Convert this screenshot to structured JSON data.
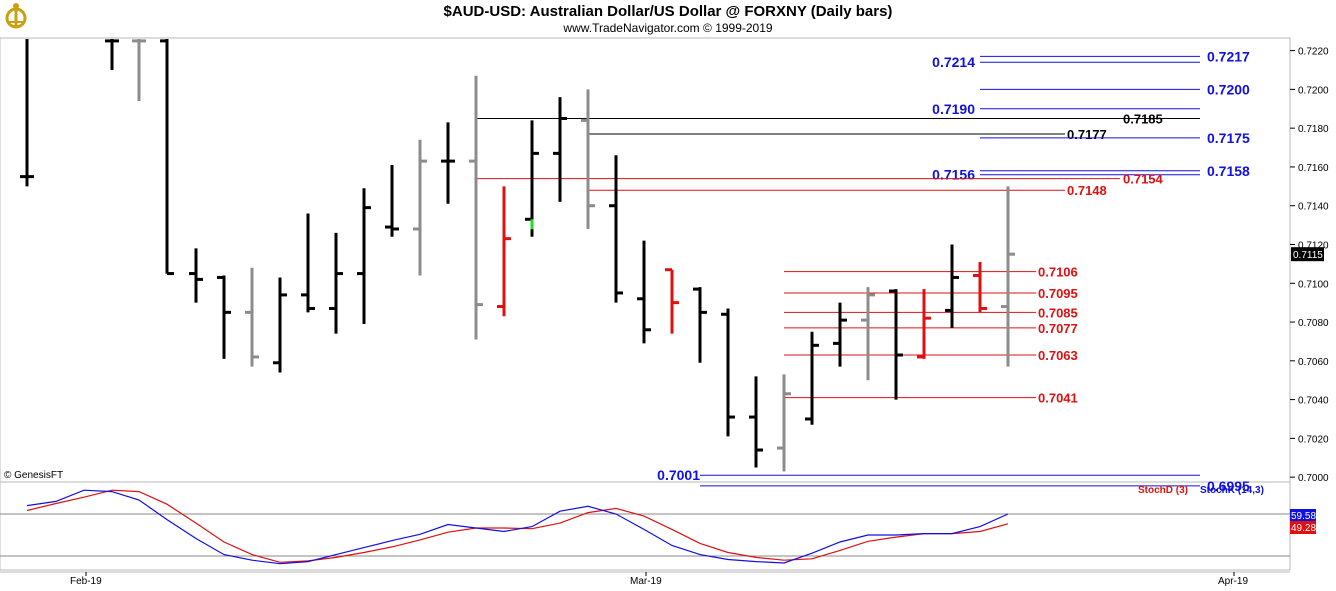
{
  "header": {
    "title": "$AUD-USD:  Australian Dollar/US Dollar @ FORXNY  (Daily bars)",
    "subtitle": "www.TradeNavigator.com © 1999-2019"
  },
  "copyright": "© GenesisFT",
  "colors": {
    "blue": "#1010e0",
    "red": "#e01010",
    "black": "#000000",
    "grey": "#8c8c8c",
    "green": "#22dd22"
  },
  "chart_data": {
    "type": "ohlc",
    "ylim": [
      6.9975,
      7.2265
    ],
    "price_scale": 0.1,
    "yticks": [
      "0.7000",
      "0.7020",
      "0.7040",
      "0.7060",
      "0.7080",
      "0.7100",
      "0.7120",
      "0.7140",
      "0.7160",
      "0.7180",
      "0.7200",
      "0.7220"
    ],
    "last_price": "0.7115",
    "date_labels": [
      "Feb-19",
      "Mar-19",
      "Apr-19"
    ],
    "bars": [
      {
        "x": 27,
        "o": 7.155,
        "h": 7.235,
        "l": 7.15,
        "c": 7.155,
        "col": "black"
      },
      {
        "x": 112,
        "o": 7.225,
        "h": 7.235,
        "l": 7.21,
        "c": 7.225,
        "col": "black"
      },
      {
        "x": 139,
        "o": 7.225,
        "h": 7.235,
        "l": 7.194,
        "c": 7.225,
        "col": "grey"
      },
      {
        "x": 167,
        "o": 7.225,
        "h": 7.235,
        "l": 7.105,
        "c": 7.105,
        "col": "black"
      },
      {
        "x": 196,
        "o": 7.105,
        "h": 7.118,
        "l": 7.09,
        "c": 7.102,
        "col": "black"
      },
      {
        "x": 224,
        "o": 7.103,
        "h": 7.104,
        "l": 7.061,
        "c": 7.085,
        "col": "black"
      },
      {
        "x": 252,
        "o": 7.085,
        "h": 7.108,
        "l": 7.057,
        "c": 7.062,
        "col": "grey"
      },
      {
        "x": 280,
        "o": 7.059,
        "h": 7.103,
        "l": 7.054,
        "c": 7.094,
        "col": "black"
      },
      {
        "x": 308,
        "o": 7.094,
        "h": 7.136,
        "l": 7.085,
        "c": 7.087,
        "col": "black"
      },
      {
        "x": 336,
        "o": 7.087,
        "h": 7.126,
        "l": 7.074,
        "c": 7.105,
        "col": "black"
      },
      {
        "x": 364,
        "o": 7.105,
        "h": 7.149,
        "l": 7.079,
        "c": 7.139,
        "col": "black"
      },
      {
        "x": 392,
        "o": 7.129,
        "h": 7.161,
        "l": 7.124,
        "c": 7.128,
        "col": "black"
      },
      {
        "x": 420,
        "o": 7.128,
        "h": 7.174,
        "l": 7.104,
        "c": 7.163,
        "col": "grey"
      },
      {
        "x": 448,
        "o": 7.163,
        "h": 7.183,
        "l": 7.141,
        "c": 7.163,
        "col": "black"
      },
      {
        "x": 476,
        "o": 7.163,
        "h": 7.207,
        "l": 7.071,
        "c": 7.089,
        "col": "grey"
      },
      {
        "x": 504,
        "o": 7.088,
        "h": 7.15,
        "l": 7.083,
        "c": 7.123,
        "col": "red"
      },
      {
        "x": 532,
        "o": 7.133,
        "h": 7.184,
        "l": 7.124,
        "c": 7.167,
        "col": "black",
        "mark": "green"
      },
      {
        "x": 560,
        "o": 7.167,
        "h": 7.196,
        "l": 7.142,
        "c": 7.185,
        "col": "black"
      },
      {
        "x": 588,
        "o": 7.184,
        "h": 7.2,
        "l": 7.128,
        "c": 7.14,
        "col": "grey"
      },
      {
        "x": 616,
        "o": 7.14,
        "h": 7.166,
        "l": 7.09,
        "c": 7.095,
        "col": "black"
      },
      {
        "x": 644,
        "o": 7.092,
        "h": 7.122,
        "l": 7.069,
        "c": 7.076,
        "col": "black"
      },
      {
        "x": 672,
        "o": 7.107,
        "h": 7.107,
        "l": 7.074,
        "c": 7.09,
        "col": "red"
      },
      {
        "x": 700,
        "o": 7.097,
        "h": 7.098,
        "l": 7.059,
        "c": 7.085,
        "col": "black"
      },
      {
        "x": 728,
        "o": 7.084,
        "h": 7.087,
        "l": 7.021,
        "c": 7.031,
        "col": "black"
      },
      {
        "x": 756,
        "o": 7.031,
        "h": 7.052,
        "l": 7.005,
        "c": 7.014,
        "col": "black"
      },
      {
        "x": 784,
        "o": 7.015,
        "h": 7.053,
        "l": 7.003,
        "c": 7.043,
        "col": "grey"
      },
      {
        "x": 812,
        "o": 7.03,
        "h": 7.075,
        "l": 7.027,
        "c": 7.068,
        "col": "black"
      },
      {
        "x": 840,
        "o": 7.069,
        "h": 7.09,
        "l": 7.057,
        "c": 7.081,
        "col": "black"
      },
      {
        "x": 868,
        "o": 7.081,
        "h": 7.098,
        "l": 7.05,
        "c": 7.094,
        "col": "grey"
      },
      {
        "x": 896,
        "o": 7.096,
        "h": 7.097,
        "l": 7.04,
        "c": 7.063,
        "col": "black"
      },
      {
        "x": 924,
        "o": 7.062,
        "h": 7.097,
        "l": 7.061,
        "c": 7.082,
        "col": "red"
      },
      {
        "x": 952,
        "o": 7.086,
        "h": 7.12,
        "l": 7.077,
        "c": 7.103,
        "col": "black"
      },
      {
        "x": 980,
        "o": 7.104,
        "h": 7.111,
        "l": 7.085,
        "c": 7.087,
        "col": "red"
      },
      {
        "x": 1008,
        "o": 7.088,
        "h": 7.15,
        "l": 7.057,
        "c": 7.115,
        "col": "grey"
      }
    ],
    "levels": [
      {
        "label": "0.7214",
        "y": 7.214,
        "col": "blue",
        "side": "left",
        "x1": 980,
        "x2": 1200,
        "tx": 975
      },
      {
        "label": "0.7217",
        "y": 7.217,
        "col": "blue",
        "side": "right",
        "x1": 980,
        "x2": 1200,
        "tx": 1207
      },
      {
        "label": "0.7200",
        "y": 7.2,
        "col": "blue",
        "side": "right",
        "x1": 980,
        "x2": 1200,
        "tx": 1207
      },
      {
        "label": "0.7190",
        "y": 7.19,
        "col": "blue",
        "side": "left",
        "x1": 980,
        "x2": 1200,
        "tx": 975
      },
      {
        "label": "0.7185",
        "y": 7.185,
        "col": "black",
        "side": "right",
        "x1": 476,
        "x2": 1200,
        "tx": 1123
      },
      {
        "label": "0.7177",
        "y": 7.177,
        "col": "black",
        "side": "right",
        "x1": 588,
        "x2": 1065,
        "tx": 1067
      },
      {
        "label": "0.7175",
        "y": 7.175,
        "col": "blue",
        "side": "right",
        "x1": 980,
        "x2": 1200,
        "tx": 1207
      },
      {
        "label": "0.7158",
        "y": 7.158,
        "col": "blue",
        "side": "right",
        "x1": 980,
        "x2": 1200,
        "tx": 1207
      },
      {
        "label": "0.7156",
        "y": 7.156,
        "col": "blue",
        "side": "left",
        "x1": 980,
        "x2": 1200,
        "tx": 975
      },
      {
        "label": "0.7154",
        "y": 7.154,
        "col": "red",
        "side": "right",
        "x1": 476,
        "x2": 1120,
        "tx": 1123
      },
      {
        "label": "0.7148",
        "y": 7.148,
        "col": "red",
        "side": "right",
        "x1": 588,
        "x2": 1065,
        "tx": 1067
      },
      {
        "label": "0.7106",
        "y": 7.106,
        "col": "red",
        "side": "right",
        "x1": 784,
        "x2": 1036,
        "tx": 1038
      },
      {
        "label": "0.7095",
        "y": 7.095,
        "col": "red",
        "side": "right",
        "x1": 784,
        "x2": 1036,
        "tx": 1038
      },
      {
        "label": "0.7085",
        "y": 7.085,
        "col": "red",
        "side": "right",
        "x1": 784,
        "x2": 1036,
        "tx": 1038
      },
      {
        "label": "0.7077",
        "y": 7.077,
        "col": "red",
        "side": "right",
        "x1": 784,
        "x2": 1036,
        "tx": 1038
      },
      {
        "label": "0.7063",
        "y": 7.063,
        "col": "red",
        "side": "right",
        "x1": 784,
        "x2": 1036,
        "tx": 1038
      },
      {
        "label": "0.7041",
        "y": 7.041,
        "col": "red",
        "side": "right",
        "x1": 784,
        "x2": 1036,
        "tx": 1038
      },
      {
        "label": "0.7001",
        "y": 7.001,
        "col": "blue",
        "side": "left",
        "x1": 700,
        "x2": 1200,
        "tx": 700
      },
      {
        "label": "0.6995",
        "y": 6.9955,
        "col": "blue",
        "side": "right",
        "x1": 700,
        "x2": 1200,
        "tx": 1207
      }
    ],
    "indicator": {
      "labels": [
        "StochD (3)",
        "StochK (14,3)"
      ],
      "stochK_value": "59.58",
      "stochD_value": "49.28",
      "x": [
        27,
        56,
        84,
        112,
        139,
        167,
        196,
        224,
        252,
        280,
        308,
        336,
        364,
        392,
        420,
        448,
        476,
        504,
        532,
        560,
        588,
        616,
        644,
        672,
        700,
        728,
        756,
        784,
        812,
        840,
        868,
        896,
        924,
        952,
        980,
        1008
      ],
      "stochK": [
        92,
        98,
        114,
        112,
        100,
        72,
        45,
        22,
        14,
        9,
        12,
        22,
        32,
        42,
        51,
        65,
        60,
        55,
        62,
        84,
        91,
        80,
        58,
        35,
        22,
        15,
        12,
        10,
        24,
        40,
        50,
        50,
        52,
        52,
        62,
        80
      ],
      "stochD": [
        85,
        95,
        104,
        114,
        112,
        94,
        67,
        40,
        22,
        11,
        13,
        18,
        25,
        33,
        43,
        54,
        60,
        60,
        59,
        67,
        82,
        88,
        77,
        58,
        38,
        25,
        18,
        14,
        16,
        28,
        41,
        47,
        52,
        52,
        55,
        66
      ]
    }
  }
}
